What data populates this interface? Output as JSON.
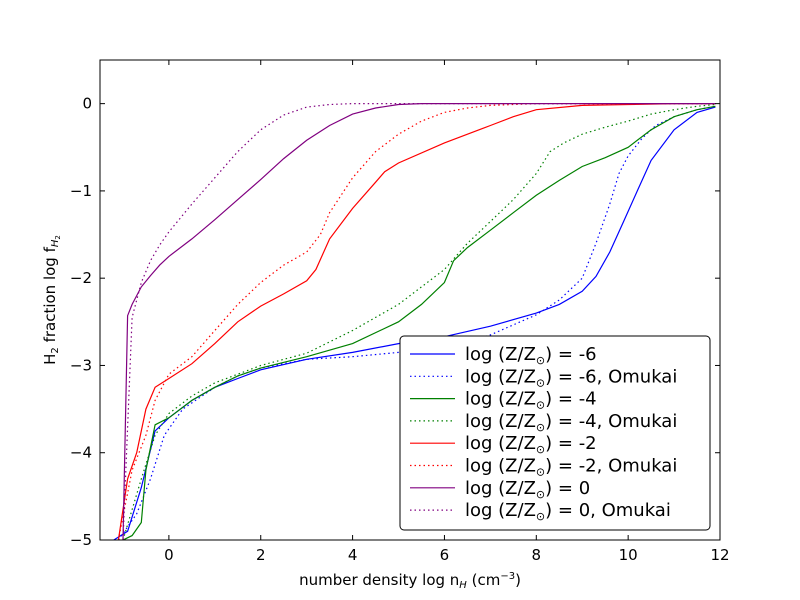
{
  "chart_data": {
    "type": "line",
    "xlabel_main": "number density log n",
    "xlabel_sub": "H",
    "xlabel_unit_open": " (cm",
    "xlabel_unit_sup": "−3",
    "xlabel_unit_close": ")",
    "ylabel_main": "H",
    "ylabel_sub": "2",
    "ylabel_rest": " fraction log f",
    "ylabel_fsub": "H",
    "ylabel_fsub2": "2",
    "xlim": [
      -1.5,
      12
    ],
    "ylim": [
      -5,
      0.5
    ],
    "xticks": [
      "0",
      "2",
      "4",
      "6",
      "8",
      "10",
      "12"
    ],
    "yticks": [
      "0",
      "−1",
      "−2",
      "−3",
      "−4",
      "−5"
    ],
    "legend_position": "lower right",
    "legend_prefix": "log (Z/Z",
    "legend_sun": "⊙",
    "series": [
      {
        "name": "log (Z/Z⊙) = -6",
        "label_suffix": ") = -6",
        "color": "#0000ff",
        "style": "solid",
        "x": [
          -1.2,
          -0.9,
          -0.6,
          -0.3,
          0,
          0.5,
          1,
          1.5,
          2,
          3,
          4,
          5,
          6,
          7,
          8,
          8.5,
          9,
          9.3,
          9.6,
          9.9,
          10.2,
          10.5,
          11,
          11.5,
          11.9
        ],
        "y": [
          -5,
          -4.9,
          -4.4,
          -3.75,
          -3.6,
          -3.4,
          -3.25,
          -3.15,
          -3.05,
          -2.93,
          -2.85,
          -2.75,
          -2.67,
          -2.55,
          -2.4,
          -2.3,
          -2.15,
          -1.98,
          -1.7,
          -1.35,
          -1.0,
          -0.65,
          -0.3,
          -0.1,
          -0.04
        ]
      },
      {
        "name": "log (Z/Z⊙) = -6, Omukai",
        "label_suffix": ") = -6, Omukai",
        "color": "#0000ff",
        "style": "dotted",
        "x": [
          -1.1,
          -0.7,
          -0.4,
          -0.1,
          0.3,
          1,
          1.5,
          2,
          3,
          4,
          5,
          6,
          7,
          8,
          8.5,
          9,
          9.3,
          9.6,
          9.8,
          10,
          10.3,
          10.6,
          11,
          11.5,
          11.9
        ],
        "y": [
          -5,
          -4.7,
          -4.3,
          -3.8,
          -3.5,
          -3.25,
          -3.12,
          -3.03,
          -2.93,
          -2.9,
          -2.85,
          -2.8,
          -2.65,
          -2.42,
          -2.25,
          -2.0,
          -1.6,
          -1.15,
          -0.8,
          -0.6,
          -0.4,
          -0.25,
          -0.15,
          -0.07,
          -0.03
        ]
      },
      {
        "name": "log (Z/Z⊙) = -4",
        "label_suffix": ") = -4",
        "color": "#008000",
        "style": "solid",
        "x": [
          -1.0,
          -0.8,
          -0.6,
          -0.5,
          -0.3,
          0,
          0.5,
          1,
          1.5,
          2,
          3,
          4,
          5,
          5.5,
          6,
          6.2,
          6.5,
          7,
          7.5,
          8,
          8.5,
          9,
          9.5,
          10,
          10.5,
          11,
          11.5,
          11.9
        ],
        "y": [
          -5,
          -4.95,
          -4.8,
          -4.2,
          -3.68,
          -3.6,
          -3.4,
          -3.25,
          -3.12,
          -3.03,
          -2.9,
          -2.75,
          -2.5,
          -2.3,
          -2.05,
          -1.8,
          -1.65,
          -1.45,
          -1.25,
          -1.05,
          -0.88,
          -0.72,
          -0.62,
          -0.5,
          -0.3,
          -0.15,
          -0.07,
          -0.03
        ]
      },
      {
        "name": "log (Z/Z⊙) = -4, Omukai",
        "label_suffix": ") = -4, Omukai",
        "color": "#008000",
        "style": "dotted",
        "x": [
          -1.0,
          -0.6,
          -0.3,
          0,
          0.5,
          1,
          2,
          3,
          4,
          5,
          5.5,
          6,
          6.5,
          7,
          7.5,
          8,
          8.3,
          8.6,
          9,
          9.5,
          10,
          10.5,
          11,
          11.5,
          11.9
        ],
        "y": [
          -5,
          -4.3,
          -3.8,
          -3.55,
          -3.35,
          -3.2,
          -3.0,
          -2.86,
          -2.6,
          -2.3,
          -2.1,
          -1.9,
          -1.6,
          -1.35,
          -1.1,
          -0.8,
          -0.55,
          -0.45,
          -0.35,
          -0.27,
          -0.2,
          -0.12,
          -0.07,
          -0.03,
          -0.01
        ]
      },
      {
        "name": "log (Z/Z⊙) = -2",
        "label_suffix": ") = -2",
        "color": "#ff0000",
        "style": "solid",
        "x": [
          -1.1,
          -0.9,
          -0.7,
          -0.5,
          -0.3,
          0,
          0.5,
          1,
          1.5,
          2,
          2.5,
          3,
          3.2,
          3.5,
          4,
          4.5,
          4.7,
          5,
          6,
          7,
          7.5,
          8,
          9,
          10,
          11,
          11.9
        ],
        "y": [
          -5,
          -4.3,
          -4.0,
          -3.5,
          -3.25,
          -3.15,
          -2.98,
          -2.75,
          -2.5,
          -2.32,
          -2.18,
          -2.03,
          -1.9,
          -1.55,
          -1.2,
          -0.9,
          -0.78,
          -0.68,
          -0.45,
          -0.25,
          -0.15,
          -0.07,
          -0.02,
          -0.01,
          0,
          0
        ]
      },
      {
        "name": "log (Z/Z⊙) = -2, Omukai",
        "label_suffix": ") = -2, Omukai",
        "color": "#ff0000",
        "style": "dotted",
        "x": [
          -1.1,
          -0.8,
          -0.5,
          -0.3,
          0,
          0.5,
          1,
          1.5,
          2,
          2.5,
          3,
          3.3,
          3.5,
          4,
          4.5,
          5,
          5.5,
          6,
          6.5,
          7,
          8,
          9,
          10,
          11,
          11.9
        ],
        "y": [
          -5,
          -4.2,
          -3.8,
          -3.4,
          -3.1,
          -2.9,
          -2.6,
          -2.3,
          -2.05,
          -1.85,
          -1.7,
          -1.5,
          -1.25,
          -0.85,
          -0.55,
          -0.35,
          -0.2,
          -0.1,
          -0.05,
          -0.02,
          0,
          0,
          0,
          0,
          0
        ]
      },
      {
        "name": "log (Z/Z⊙) = 0",
        "label_suffix": ") = 0",
        "color": "#800080",
        "style": "solid",
        "x": [
          -1.0,
          -0.9,
          -0.8,
          -0.6,
          -0.4,
          -0.2,
          0,
          0.5,
          1,
          1.5,
          2,
          2.5,
          3,
          3.5,
          4,
          4.5,
          5,
          5.5,
          6,
          7,
          8,
          9,
          10,
          11,
          11.9
        ],
        "y": [
          -5,
          -2.43,
          -2.3,
          -2.1,
          -1.97,
          -1.85,
          -1.75,
          -1.55,
          -1.33,
          -1.1,
          -0.87,
          -0.63,
          -0.42,
          -0.25,
          -0.12,
          -0.05,
          -0.01,
          0,
          0,
          0,
          0,
          0,
          0,
          0,
          0
        ]
      },
      {
        "name": "log (Z/Z⊙) = 0, Omukai",
        "label_suffix": ") = 0, Omukai",
        "color": "#800080",
        "style": "dotted",
        "x": [
          -1.0,
          -0.8,
          -0.6,
          -0.4,
          -0.2,
          0,
          0.5,
          1,
          1.5,
          2,
          2.5,
          3,
          3.5,
          4,
          4.5,
          5,
          6,
          7,
          8,
          9,
          10,
          11,
          11.9
        ],
        "y": [
          -5,
          -2.45,
          -2.05,
          -1.8,
          -1.62,
          -1.47,
          -1.15,
          -0.85,
          -0.55,
          -0.3,
          -0.13,
          -0.04,
          -0.01,
          0,
          0,
          0,
          0,
          0,
          0,
          0,
          0,
          0,
          0
        ]
      }
    ]
  }
}
